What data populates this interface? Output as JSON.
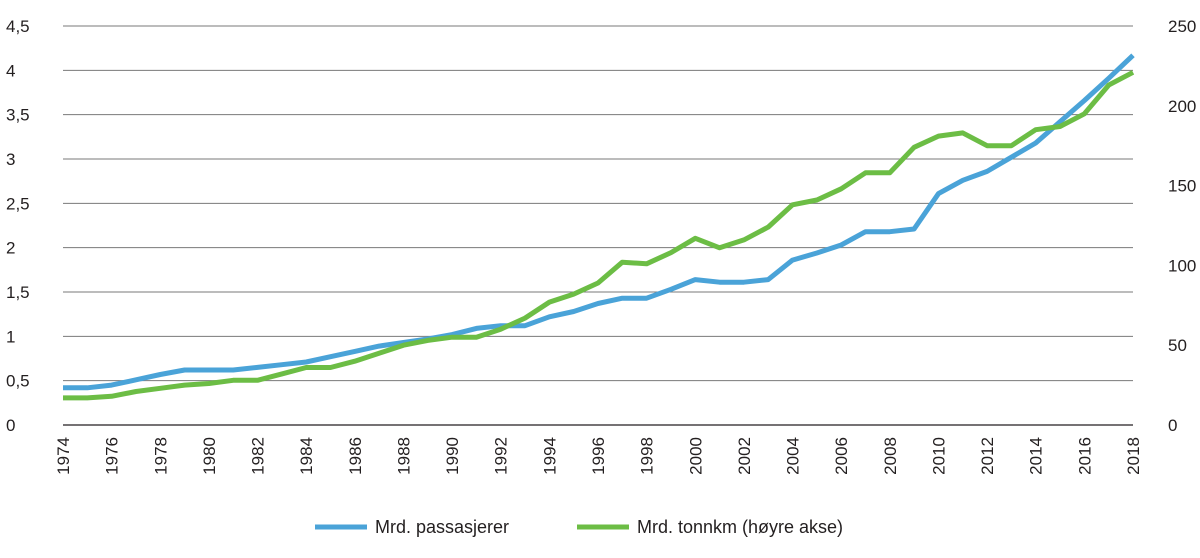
{
  "chart_data": {
    "type": "line",
    "x": [
      1974,
      1975,
      1976,
      1977,
      1978,
      1979,
      1980,
      1981,
      1982,
      1983,
      1984,
      1985,
      1986,
      1987,
      1988,
      1989,
      1990,
      1991,
      1992,
      1993,
      1994,
      1995,
      1996,
      1997,
      1998,
      1999,
      2000,
      2001,
      2002,
      2003,
      2004,
      2005,
      2006,
      2007,
      2008,
      2009,
      2010,
      2011,
      2012,
      2013,
      2014,
      2015,
      2016,
      2017,
      2018
    ],
    "x_tick_labels": [
      "1974",
      "1976",
      "1978",
      "1980",
      "1982",
      "1984",
      "1986",
      "1988",
      "1990",
      "1992",
      "1994",
      "1996",
      "1998",
      "2000",
      "2002",
      "2004",
      "2006",
      "2008",
      "2010",
      "2012",
      "2014",
      "2016",
      "2018"
    ],
    "y_left": {
      "range": [
        0,
        4.5
      ],
      "ticks": [
        "0",
        "0,5",
        "1",
        "1,5",
        "2",
        "2,5",
        "3",
        "3,5",
        "4",
        "4,5"
      ]
    },
    "y_right": {
      "range": [
        0,
        250
      ],
      "ticks": [
        "0",
        "50",
        "100",
        "150",
        "200",
        "250"
      ]
    },
    "grid": "horizontal",
    "legend_position": "bottom",
    "series": [
      {
        "name": "Mrd. passasjerer",
        "axis": "left",
        "color": "#4aa3d8",
        "values": [
          0.42,
          0.42,
          0.45,
          0.51,
          0.57,
          0.62,
          0.62,
          0.62,
          0.65,
          0.68,
          0.71,
          0.77,
          0.83,
          0.89,
          0.93,
          0.97,
          1.02,
          1.09,
          1.12,
          1.12,
          1.22,
          1.28,
          1.37,
          1.43,
          1.43,
          1.53,
          1.64,
          1.61,
          1.61,
          1.64,
          1.86,
          1.94,
          2.03,
          2.18,
          2.18,
          2.21,
          2.61,
          2.76,
          2.86,
          3.02,
          3.18,
          3.42,
          3.66,
          3.91,
          4.17
        ]
      },
      {
        "name": "Mrd. tonnkm (høyre akse)",
        "axis": "right",
        "color": "#6cbd45",
        "values": [
          17,
          17,
          18,
          21,
          23,
          25,
          26,
          28,
          28,
          32,
          36,
          36,
          40,
          45,
          50,
          53,
          55,
          55,
          60,
          67,
          77,
          82,
          89,
          102,
          101,
          108,
          117,
          111,
          116,
          124,
          138,
          141,
          148,
          158,
          158,
          174,
          181,
          183,
          175,
          175,
          185,
          187,
          195,
          213,
          221
        ]
      }
    ]
  }
}
